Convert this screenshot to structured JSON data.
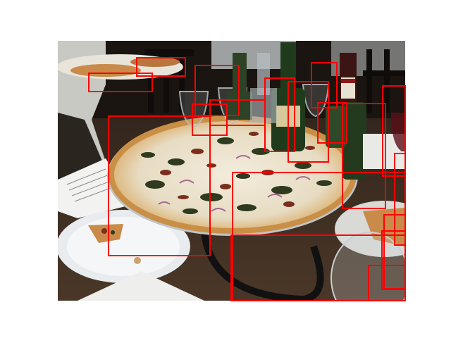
{
  "image": {
    "subject": "pizza-on-restaurant-table",
    "box_color": "#ff0000",
    "background": "#ffffff"
  },
  "palette": {
    "table_wood": "#3b2a1f",
    "chair_dark": "#15110e",
    "crust": "#d9a65c",
    "cheese": "#efe6d2",
    "greens": "#2f3a1f",
    "bacon": "#7a2f1e",
    "onion": "#a46b8f",
    "plate": "#e9ecef",
    "bottle_green": "#1f3b1c",
    "wine_red": "#5a0f18",
    "paper": "#f2f2f0"
  },
  "detection_boxes": [
    {
      "id": "b1",
      "label": "pizza-main"
    },
    {
      "id": "b2",
      "label": "pizza-slice-left"
    },
    {
      "id": "b3",
      "label": "bottle-center"
    },
    {
      "id": "b4",
      "label": "bottle-right"
    },
    {
      "id": "b5",
      "label": "glass-top"
    },
    {
      "id": "b6",
      "label": "wine-glass-bottom"
    },
    {
      "id": "b7",
      "label": "plate-right"
    },
    {
      "id": "b8",
      "label": "bottle-small"
    },
    {
      "id": "b9",
      "label": "glass-left"
    },
    {
      "id": "b10",
      "label": "glass-mid"
    },
    {
      "id": "b11",
      "label": "slice-top-left"
    },
    {
      "id": "b12",
      "label": "slice-top-left-2"
    },
    {
      "id": "b13",
      "label": "bottle-far"
    },
    {
      "id": "b14",
      "label": "bottle-mid"
    },
    {
      "id": "b15",
      "label": "glass-edge-right"
    },
    {
      "id": "b16",
      "label": "glass-edge-right-2"
    },
    {
      "id": "b17",
      "label": "chair-edge-right"
    },
    {
      "id": "b18",
      "label": "cup-bottom-right"
    },
    {
      "id": "b19",
      "label": "bottle-neck"
    },
    {
      "id": "b20",
      "label": "glass-rim"
    }
  ]
}
